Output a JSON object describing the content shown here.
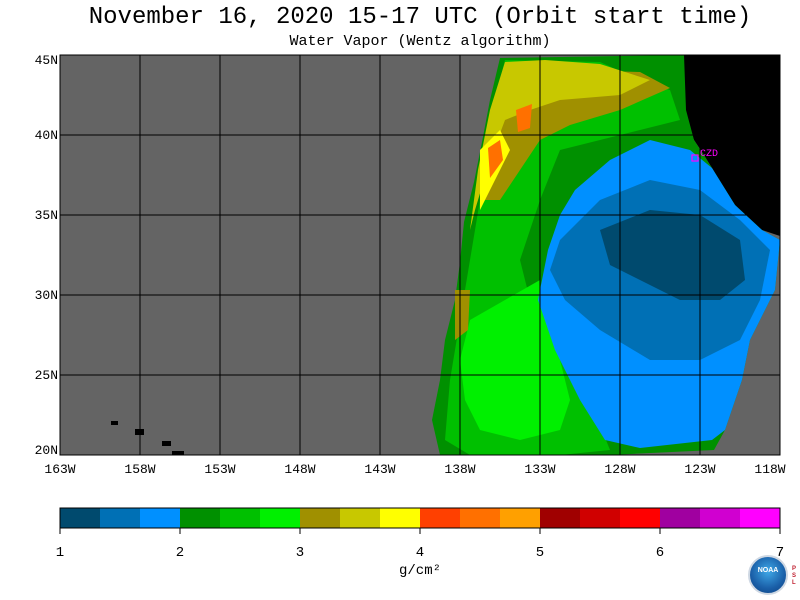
{
  "header": {
    "title": "November 16, 2020  15-17 UTC  (Orbit start time)",
    "subtitle": "Water Vapor (Wentz algorithm)"
  },
  "map": {
    "latitude_labels": [
      "45N",
      "40N",
      "35N",
      "30N",
      "25N",
      "20N"
    ],
    "longitude_labels": [
      "163W",
      "158W",
      "153W",
      "148W",
      "143W",
      "138W",
      "133W",
      "128W",
      "123W",
      "118W"
    ],
    "station_label": "CZD",
    "colors": {
      "no_data": "#646464",
      "land": "#000000",
      "station": "#ff00ff"
    }
  },
  "colorbar": {
    "tick_labels": [
      "1",
      "2",
      "3",
      "4",
      "5",
      "6",
      "7"
    ],
    "units": "g/cm²",
    "colors": [
      "#004a6e",
      "#0070b5",
      "#0090ff",
      "#009000",
      "#00c000",
      "#00f000",
      "#a09000",
      "#c8c800",
      "#ffff00",
      "#ff4000",
      "#ff7000",
      "#ffa000",
      "#a00000",
      "#d00000",
      "#ff0000",
      "#a000a0",
      "#d000d0",
      "#ff00ff"
    ]
  },
  "logo": {
    "text": "NOAA",
    "side_letters": [
      "P",
      "S",
      "L"
    ]
  }
}
